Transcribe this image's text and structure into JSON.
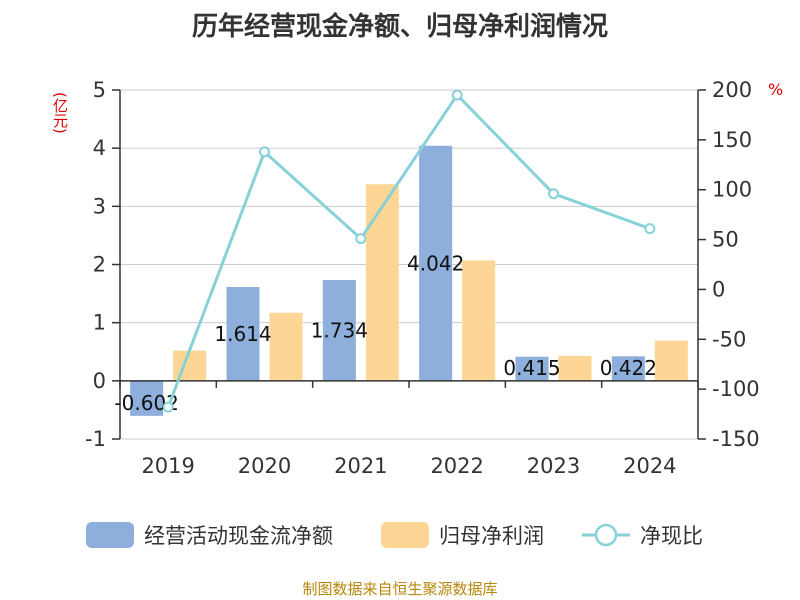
{
  "title": "历年经营现金净额、归母净利润情况",
  "source": "制图数据来自恒生聚源数据库",
  "left_unit": "(亿元)",
  "right_unit": "%",
  "colors": {
    "series1": "#8eaedc",
    "series2": "#fdd594",
    "line": "#87d2d8",
    "axis": "#333333",
    "grid": "#cccccc",
    "unit": "#e00000",
    "source": "#b8860b"
  },
  "legend": [
    {
      "label": "经营活动现金流净额",
      "type": "bar"
    },
    {
      "label": "归母净利润",
      "type": "bar"
    },
    {
      "label": "净现比",
      "type": "line"
    }
  ],
  "chart_data": {
    "type": "bar",
    "title": "历年经营现金净额、归母净利润情况",
    "categories": [
      "2019",
      "2020",
      "2021",
      "2022",
      "2023",
      "2024"
    ],
    "series": [
      {
        "name": "经营活动现金流净额",
        "type": "bar",
        "axis": "left",
        "values": [
          -0.602,
          1.614,
          1.734,
          4.042,
          0.415,
          0.422
        ],
        "labels": [
          "-0.602",
          "1.614",
          "1.734",
          "4.042",
          "0.415",
          "0.422"
        ]
      },
      {
        "name": "归母净利润",
        "type": "bar",
        "axis": "left",
        "values": [
          0.52,
          1.17,
          3.38,
          2.07,
          0.43,
          0.69
        ]
      },
      {
        "name": "净现比",
        "type": "line",
        "axis": "right",
        "values": [
          -118,
          138,
          51,
          195,
          96,
          61
        ]
      }
    ],
    "left_axis": {
      "min": -1,
      "max": 5,
      "ticks": [
        "-1",
        "0",
        "1",
        "2",
        "3",
        "4",
        "5"
      ]
    },
    "right_axis": {
      "min": -150,
      "max": 200,
      "ticks": [
        "-150",
        "-100",
        "-50",
        "0",
        "50",
        "100",
        "150",
        "200"
      ]
    },
    "ylabel_left": "(亿元)",
    "ylabel_right": "%",
    "grid": true,
    "legend_position": "bottom"
  }
}
